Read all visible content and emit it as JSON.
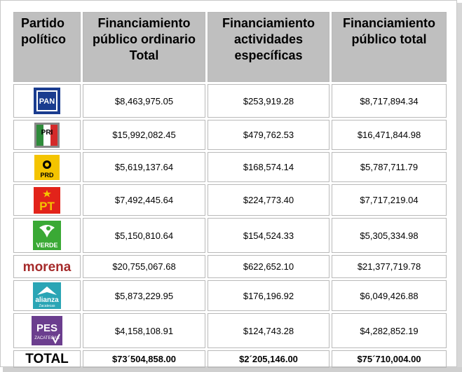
{
  "headers": [
    {
      "label": "Partido político"
    },
    {
      "label": "Financiamiento público ordinario Total"
    },
    {
      "label": "Financiamiento actividades específicas"
    },
    {
      "label": "Financiamiento público total"
    }
  ],
  "rows": [
    {
      "party": "PAN",
      "logo_text": "PAN",
      "logo_icon": "pan-logo-icon",
      "ordinario": "$8,463,975.05",
      "especificas": "$253,919.28",
      "total": "$8,717,894.34"
    },
    {
      "party": "PRI",
      "logo_text": "PRI",
      "logo_icon": "pri-logo-icon",
      "ordinario": "$15,992,082.45",
      "especificas": "$479,762.53",
      "total": "$16,471,844.98"
    },
    {
      "party": "PRD",
      "logo_text": "PRD",
      "logo_icon": "prd-logo-icon",
      "ordinario": "$5,619,137.64",
      "especificas": "$168,574.14",
      "total": "$5,787,711.79"
    },
    {
      "party": "PT",
      "logo_text": "PT",
      "logo_icon": "pt-logo-icon",
      "ordinario": "$7,492,445.64",
      "especificas": "$224,773.40",
      "total": "$7,717,219.04"
    },
    {
      "party": "VERDE",
      "logo_text": "VERDE",
      "logo_icon": "verde-logo-icon",
      "ordinario": "$5,150,810.64",
      "especificas": "$154,524.33",
      "total": "$5,305,334.98"
    },
    {
      "party": "morena",
      "logo_text": "morena",
      "logo_icon": "morena-logo-icon",
      "ordinario": "$20,755,067.68",
      "especificas": "$622,652.10",
      "total": "$21,377,719.78"
    },
    {
      "party": "alianza Zacatecas",
      "logo_text": "alianza",
      "logo_subtext": "Zacatecas",
      "logo_icon": "alianza-logo-icon",
      "ordinario": "$5,873,229.95",
      "especificas": "$176,196.92",
      "total": "$6,049,426.88"
    },
    {
      "party": "PES Zacatecas",
      "logo_text": "PES",
      "logo_subtext": "ZACATECAS",
      "logo_icon": "pes-logo-icon",
      "ordinario": "$4,158,108.91",
      "especificas": "$124,743.28",
      "total": "$4,282,852.19"
    }
  ],
  "totals": {
    "label": "TOTAL",
    "ordinario": "$73´504,858.00",
    "especificas": "$2´205,146.00",
    "total": "$75´710,004.00"
  },
  "colors": {
    "header_bg": "#bfbfbf",
    "pan_blue": "#1a3c8f",
    "pri_green": "#2e8b3a",
    "pri_red": "#d42a2a",
    "prd_yellow": "#f4c400",
    "pt_red": "#e2231a",
    "verde_green": "#3aa935",
    "morena_maroon": "#a52a2a",
    "alianza_teal": "#2aa5b5",
    "pes_purple": "#6b3e8e"
  }
}
